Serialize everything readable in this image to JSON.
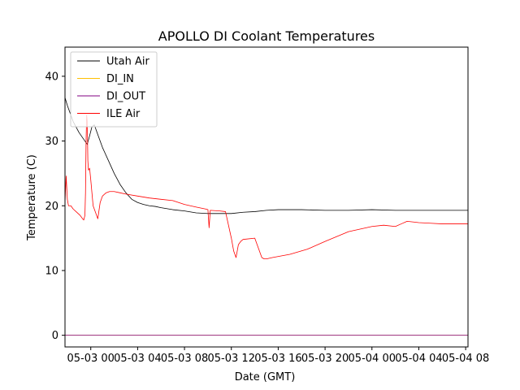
{
  "chart_data": {
    "type": "line",
    "title": "APOLLO DI Coolant Temperatures",
    "xlabel": "Date (GMT)",
    "ylabel": "Temperature (C)",
    "x_tick_labels": [
      "05-03 00",
      "05-03 04",
      "05-03 08",
      "05-03 12",
      "05-03 16",
      "05-03 20",
      "05-04 00",
      "05-04 04",
      "05-04 08"
    ],
    "x_tick_hours": [
      0,
      4,
      8,
      12,
      16,
      20,
      24,
      28,
      32
    ],
    "xlim_hours": [
      -2.2,
      32.2
    ],
    "y_ticks": [
      0,
      10,
      20,
      30,
      40
    ],
    "ylim": [
      -1.8,
      44.5
    ],
    "grid": false,
    "legend_position": "upper-left",
    "series": [
      {
        "name": "Utah Air",
        "color": "#000000",
        "x_hours": [
          -2.2,
          -2.0,
          -1.5,
          -1.0,
          -0.5,
          -0.3,
          -0.1,
          0.1,
          0.3,
          0.6,
          1.0,
          1.5,
          2.0,
          2.5,
          3.0,
          3.5,
          4.0,
          4.5,
          5.0,
          5.5,
          6.0,
          7.0,
          8.0,
          9.0,
          10.0,
          11.0,
          12.0,
          13.0,
          14.0,
          15.0,
          16.0,
          17.0,
          18.0,
          20.0,
          22.0,
          24.0,
          26.0,
          28.0,
          30.0,
          32.2
        ],
        "values": [
          36.7,
          35.5,
          33.0,
          31.3,
          30.0,
          29.5,
          30.8,
          32.2,
          32.5,
          31.0,
          29.0,
          27.0,
          25.0,
          23.3,
          22.0,
          21.0,
          20.5,
          20.2,
          20.0,
          19.9,
          19.7,
          19.4,
          19.2,
          18.9,
          18.8,
          18.8,
          18.8,
          19.0,
          19.1,
          19.3,
          19.4,
          19.4,
          19.4,
          19.3,
          19.3,
          19.4,
          19.3,
          19.3,
          19.3,
          19.3
        ]
      },
      {
        "name": "DI_IN",
        "color": "#ffbf00",
        "x_hours": [
          -2.2,
          32.2
        ],
        "values": [
          0,
          0
        ]
      },
      {
        "name": "DI_OUT",
        "color": "#800080",
        "x_hours": [
          -2.2,
          32.2
        ],
        "values": [
          0,
          0
        ]
      },
      {
        "name": "ILE Air",
        "color": "#ff0000",
        "x_hours": [
          -2.2,
          -2.1,
          -2.0,
          -1.9,
          -1.7,
          -1.5,
          -1.2,
          -0.9,
          -0.7,
          -0.6,
          -0.5,
          -0.45,
          -0.4,
          -0.35,
          -0.3,
          -0.25,
          -0.2,
          -0.1,
          0.0,
          0.2,
          0.4,
          0.6,
          0.8,
          1.0,
          1.3,
          1.6,
          2.0,
          2.5,
          3.0,
          4.0,
          5.0,
          6.0,
          7.0,
          8.0,
          9.0,
          9.8,
          10.0,
          10.1,
          10.2,
          11.0,
          11.5,
          12.0,
          12.2,
          12.4,
          12.6,
          12.8,
          13.0,
          14.0,
          14.6,
          14.8,
          15.0,
          15.5,
          17.0,
          18.5,
          20.0,
          22.0,
          24.0,
          25.0,
          26.0,
          26.5,
          27.0,
          28.0,
          29.0,
          30.0,
          31.0,
          32.2
        ],
        "values": [
          20.5,
          24.6,
          21.0,
          20.0,
          20.0,
          19.5,
          19.0,
          18.5,
          18.0,
          17.8,
          18.5,
          22.0,
          30.0,
          34.0,
          33.0,
          27.0,
          25.5,
          25.8,
          24.0,
          20.0,
          19.0,
          18.0,
          20.5,
          21.5,
          22.0,
          22.2,
          22.2,
          22.0,
          21.8,
          21.5,
          21.2,
          21.0,
          20.8,
          20.2,
          19.8,
          19.5,
          19.4,
          16.6,
          19.3,
          19.2,
          19.1,
          15.0,
          13.0,
          12.0,
          14.0,
          14.5,
          14.8,
          15.0,
          12.0,
          11.8,
          11.8,
          12.0,
          12.5,
          13.3,
          14.5,
          16.0,
          16.8,
          17.0,
          16.8,
          17.2,
          17.6,
          17.4,
          17.3,
          17.2,
          17.2,
          17.2
        ]
      }
    ]
  }
}
